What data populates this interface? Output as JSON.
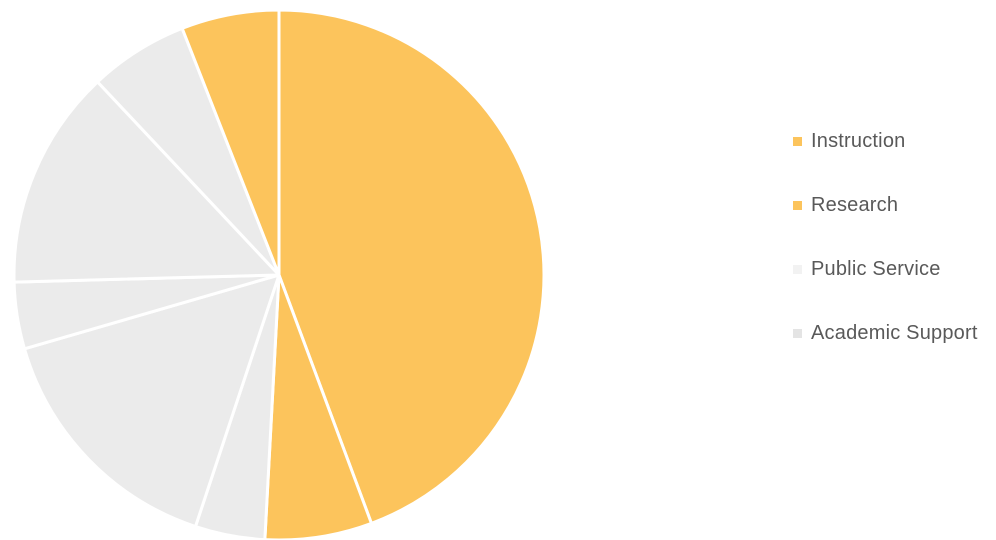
{
  "chart_data": {
    "type": "pie",
    "title": "",
    "start_angle_deg": 0,
    "direction": "clockwise",
    "slices": [
      {
        "value": 46.9,
        "color": "#fcc45c"
      },
      {
        "value": 6.9,
        "color": "#fcc45c"
      },
      {
        "value": 4.5,
        "color": "#ebebeb"
      },
      {
        "value": 16.3,
        "color": "#ebebeb"
      },
      {
        "value": 4.3,
        "color": "#ebebeb"
      },
      {
        "value": 14.2,
        "color": "#ebebeb"
      },
      {
        "value": 6.4,
        "color": "#ebebeb"
      },
      {
        "value": 6.3,
        "color": "#fcc45c"
      }
    ],
    "legend": {
      "placement": "right",
      "entries": [
        {
          "label": "Instruction",
          "color": "#fcc45c"
        },
        {
          "label": "Research",
          "color": "#fcc45c"
        },
        {
          "label": "Public Service",
          "color": "#f2f2f2"
        },
        {
          "label": "Academic Support",
          "color": "#e4e4e4"
        }
      ]
    }
  },
  "colors": {
    "background": "#ffffff",
    "slice_separator": "#ffffff",
    "legend_text": "#595959"
  }
}
